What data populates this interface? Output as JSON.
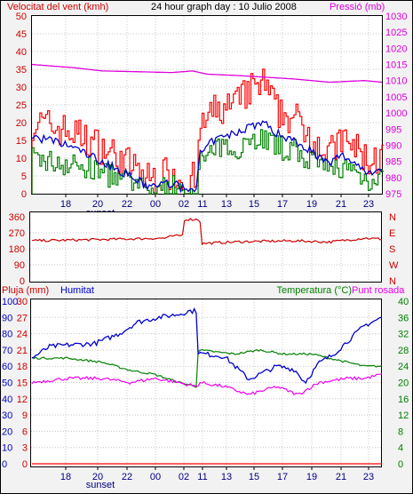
{
  "header": {
    "wind_label": "Velocitat del vent (kmh)",
    "title": "24 hour graph day : 10 Julio 2008",
    "pressure_label": "Pressió (mb)"
  },
  "bottom_header": {
    "rain_label": "Pluja (mm)",
    "humidity_label": "Humitat",
    "temperature_label": "Temperatura (°C)",
    "dewpoint_label": "Punt rosada"
  },
  "x_axis": {
    "tick_labels": [
      "18",
      "20",
      "22",
      "00",
      "02",
      "11",
      "13",
      "15",
      "17",
      "19",
      "21",
      "23"
    ],
    "sunset_label": "sunset"
  },
  "colors": {
    "gust": "#ff0000",
    "wind": "#008000",
    "wind_avg": "#0000cc",
    "pressure": "#dd00dd",
    "direction": "#cc0000",
    "humidity": "#0000cc",
    "temperature": "#008000",
    "dewpoint": "#ee00ee",
    "rain": "#ff0000",
    "dark_red_text": "#cc0000",
    "blue_text": "#0000cc",
    "green_text": "#008000"
  },
  "chart_data": [
    {
      "id": "wind",
      "type": "bar",
      "series": [
        {
          "name": "Velocitat del vent",
          "unit": "kmh"
        },
        {
          "name": "Pressió",
          "unit": "mb"
        }
      ],
      "y_left": {
        "ticks": [
          "0",
          "5",
          "10",
          "15",
          "20",
          "25",
          "30",
          "35",
          "40",
          "45",
          "50"
        ],
        "range": [
          0,
          50
        ]
      },
      "y_right": {
        "ticks": [
          "975",
          "980",
          "985",
          "990",
          "995",
          "1000",
          "1005",
          "1010",
          "1015",
          "1020",
          "1025",
          "1030"
        ],
        "range": [
          975,
          1030
        ]
      },
      "pressure_keypoints": [
        [
          0,
          1015
        ],
        [
          0.12,
          1014
        ],
        [
          0.2,
          1013
        ],
        [
          0.4,
          1012.5
        ],
        [
          0.46,
          1013
        ],
        [
          0.5,
          1012
        ],
        [
          0.6,
          1011.5
        ],
        [
          0.75,
          1010.5
        ],
        [
          0.85,
          1009.5
        ],
        [
          0.95,
          1010
        ],
        [
          1.0,
          1009.5
        ]
      ],
      "gust_profile": [
        [
          0,
          19
        ],
        [
          0.05,
          18
        ],
        [
          0.12,
          16
        ],
        [
          0.2,
          12
        ],
        [
          0.28,
          7
        ],
        [
          0.33,
          3
        ],
        [
          0.36,
          4
        ],
        [
          0.4,
          5
        ],
        [
          0.44,
          2
        ],
        [
          0.46,
          3
        ],
        [
          0.47,
          2
        ],
        [
          0.48,
          18
        ],
        [
          0.52,
          22
        ],
        [
          0.58,
          24
        ],
        [
          0.62,
          28
        ],
        [
          0.66,
          30
        ],
        [
          0.7,
          22
        ],
        [
          0.75,
          20
        ],
        [
          0.8,
          15
        ],
        [
          0.85,
          10
        ],
        [
          0.88,
          14
        ],
        [
          0.92,
          12
        ],
        [
          0.96,
          8
        ],
        [
          1.0,
          9
        ]
      ],
      "wind_profile": [
        [
          0,
          10
        ],
        [
          0.05,
          9
        ],
        [
          0.12,
          8
        ],
        [
          0.2,
          6
        ],
        [
          0.28,
          3
        ],
        [
          0.33,
          1
        ],
        [
          0.4,
          2
        ],
        [
          0.44,
          1
        ],
        [
          0.47,
          1
        ],
        [
          0.48,
          9
        ],
        [
          0.52,
          12
        ],
        [
          0.58,
          13
        ],
        [
          0.62,
          15
        ],
        [
          0.66,
          16
        ],
        [
          0.7,
          13
        ],
        [
          0.75,
          12
        ],
        [
          0.8,
          9
        ],
        [
          0.85,
          6
        ],
        [
          0.88,
          8
        ],
        [
          0.92,
          6
        ],
        [
          0.96,
          4
        ],
        [
          1.0,
          5
        ]
      ],
      "avg_profile": [
        [
          0,
          16
        ],
        [
          0.05,
          15
        ],
        [
          0.12,
          13
        ],
        [
          0.2,
          9
        ],
        [
          0.28,
          5
        ],
        [
          0.33,
          2
        ],
        [
          0.4,
          3
        ],
        [
          0.44,
          1
        ],
        [
          0.47,
          2
        ],
        [
          0.48,
          11
        ],
        [
          0.52,
          15
        ],
        [
          0.58,
          17
        ],
        [
          0.62,
          19
        ],
        [
          0.66,
          20
        ],
        [
          0.7,
          17
        ],
        [
          0.75,
          15
        ],
        [
          0.8,
          12
        ],
        [
          0.85,
          8
        ],
        [
          0.88,
          11
        ],
        [
          0.92,
          9
        ],
        [
          0.96,
          6
        ],
        [
          1.0,
          7
        ]
      ]
    },
    {
      "id": "direction",
      "type": "line",
      "y_left": {
        "ticks": [
          "0",
          "90",
          "180",
          "270",
          "360"
        ],
        "range": [
          0,
          360
        ]
      },
      "y_right_labels": [
        "N",
        "W",
        "S",
        "E",
        "N"
      ],
      "direction_keypoints": [
        [
          0,
          225
        ],
        [
          0.2,
          232
        ],
        [
          0.38,
          240
        ],
        [
          0.4,
          250
        ],
        [
          0.43,
          255
        ],
        [
          0.435,
          345
        ],
        [
          0.48,
          345
        ],
        [
          0.485,
          210
        ],
        [
          0.6,
          220
        ],
        [
          0.75,
          225
        ],
        [
          0.85,
          218
        ],
        [
          0.95,
          240
        ],
        [
          1.0,
          235
        ]
      ]
    },
    {
      "id": "climate",
      "type": "line",
      "y_left_humidity": {
        "ticks": [
          "0",
          "10",
          "20",
          "30",
          "40",
          "50",
          "60",
          "70",
          "80",
          "90",
          "100"
        ],
        "range": [
          0,
          100
        ]
      },
      "y_left_rain": {
        "ticks": [
          "0",
          "3",
          "6",
          "9",
          "12",
          "15",
          "18",
          "21",
          "24",
          "27",
          "30"
        ],
        "range": [
          0,
          30
        ]
      },
      "y_right_temp": {
        "ticks": [
          "0",
          "4",
          "8",
          "12",
          "16",
          "20",
          "24",
          "28",
          "32",
          "36",
          "40"
        ],
        "range": [
          0,
          40
        ]
      },
      "humidity_keypoints": [
        [
          0,
          65
        ],
        [
          0.05,
          72
        ],
        [
          0.1,
          73
        ],
        [
          0.18,
          74
        ],
        [
          0.25,
          80
        ],
        [
          0.3,
          87
        ],
        [
          0.36,
          90
        ],
        [
          0.42,
          92
        ],
        [
          0.45,
          94
        ],
        [
          0.47,
          94
        ],
        [
          0.475,
          68
        ],
        [
          0.55,
          66
        ],
        [
          0.62,
          52
        ],
        [
          0.7,
          60
        ],
        [
          0.75,
          58
        ],
        [
          0.78,
          50
        ],
        [
          0.82,
          62
        ],
        [
          0.86,
          67
        ],
        [
          0.9,
          75
        ],
        [
          0.95,
          85
        ],
        [
          1.0,
          90
        ]
      ],
      "temperature_keypoints": [
        [
          0,
          26
        ],
        [
          0.1,
          26
        ],
        [
          0.2,
          25
        ],
        [
          0.28,
          23
        ],
        [
          0.35,
          22
        ],
        [
          0.42,
          20
        ],
        [
          0.47,
          19
        ],
        [
          0.475,
          28
        ],
        [
          0.58,
          27
        ],
        [
          0.65,
          28
        ],
        [
          0.72,
          27
        ],
        [
          0.8,
          27
        ],
        [
          0.85,
          26
        ],
        [
          0.9,
          25
        ],
        [
          0.95,
          24
        ],
        [
          1.0,
          24
        ]
      ],
      "dewpoint_keypoints": [
        [
          0,
          20
        ],
        [
          0.1,
          21
        ],
        [
          0.2,
          21
        ],
        [
          0.28,
          20
        ],
        [
          0.35,
          21
        ],
        [
          0.42,
          20
        ],
        [
          0.47,
          19
        ],
        [
          0.48,
          20
        ],
        [
          0.55,
          19
        ],
        [
          0.62,
          17
        ],
        [
          0.7,
          19
        ],
        [
          0.76,
          17
        ],
        [
          0.82,
          20
        ],
        [
          0.9,
          21
        ],
        [
          0.95,
          21
        ],
        [
          1.0,
          22
        ]
      ],
      "rain_value": 0
    }
  ]
}
